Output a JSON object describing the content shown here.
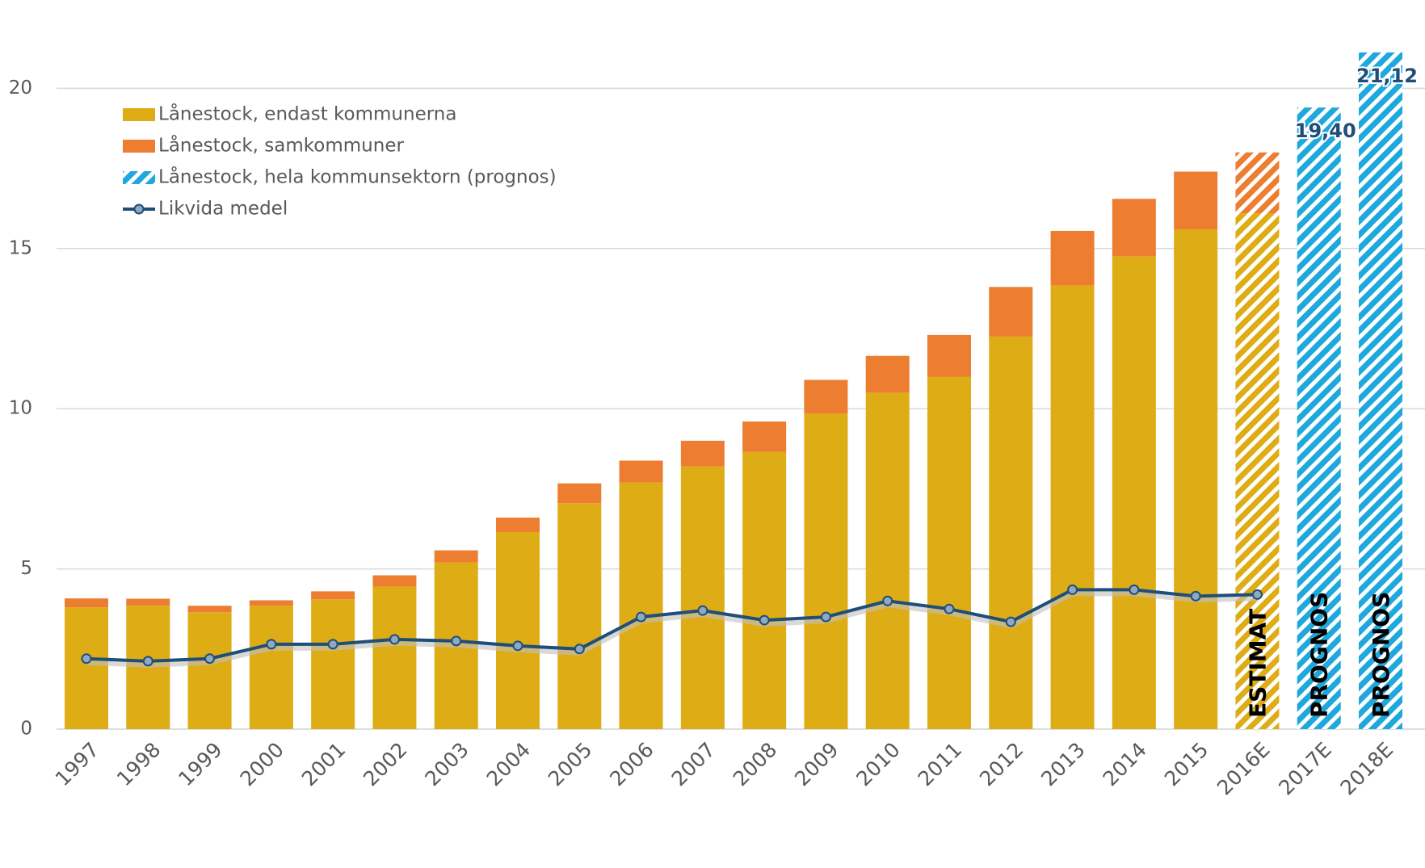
{
  "chart_data": {
    "type": "bar",
    "categories": [
      "1997",
      "1998",
      "1999",
      "2000",
      "2001",
      "2002",
      "2003",
      "2004",
      "2005",
      "2006",
      "2007",
      "2008",
      "2009",
      "2010",
      "2011",
      "2012",
      "2013",
      "2014",
      "2015",
      "2016E",
      "2017E",
      "2018E"
    ],
    "series": [
      {
        "name": "Lånestock, endast kommunerna",
        "color": "#deac14",
        "type": "bar",
        "values": [
          3.8,
          3.85,
          3.65,
          3.85,
          4.05,
          4.45,
          5.2,
          6.15,
          7.05,
          7.7,
          8.2,
          8.65,
          9.85,
          10.5,
          11.0,
          12.25,
          13.85,
          14.75,
          15.6,
          16.1,
          null,
          null
        ]
      },
      {
        "name": "Lånestock, samkommuner",
        "color": "#ed7d31",
        "type": "bar",
        "values": [
          0.28,
          0.22,
          0.2,
          0.17,
          0.25,
          0.35,
          0.38,
          0.45,
          0.62,
          0.68,
          0.8,
          0.95,
          1.05,
          1.15,
          1.3,
          1.55,
          1.7,
          1.8,
          1.8,
          1.9,
          null,
          null
        ]
      },
      {
        "name": "Lånestock, hela kommunsektorn (prognos)",
        "color": "#1ea8dc",
        "type": "bar",
        "hatched": true,
        "values": [
          null,
          null,
          null,
          null,
          null,
          null,
          null,
          null,
          null,
          null,
          null,
          null,
          null,
          null,
          null,
          null,
          null,
          null,
          null,
          null,
          19.4,
          21.12
        ],
        "value_labels": [
          null,
          null,
          null,
          null,
          null,
          null,
          null,
          null,
          null,
          null,
          null,
          null,
          null,
          null,
          null,
          null,
          null,
          null,
          null,
          null,
          "19,40",
          "21,12"
        ]
      },
      {
        "name": "Likvida medel",
        "color": "#1f4e79",
        "type": "line",
        "values": [
          2.2,
          2.12,
          2.2,
          2.65,
          2.65,
          2.8,
          2.75,
          2.6,
          2.5,
          3.5,
          3.7,
          3.4,
          3.5,
          4.0,
          3.75,
          3.35,
          4.35,
          4.35,
          4.15,
          4.2,
          null,
          null
        ]
      }
    ],
    "hatched_categories": [
      "2016E"
    ],
    "annotations": [
      {
        "category": "2016E",
        "text": "ESTIMAT"
      },
      {
        "category": "2017E",
        "text": "PROGNOS"
      },
      {
        "category": "2018E",
        "text": "PROGNOS"
      }
    ],
    "ylim": [
      0,
      22
    ],
    "yticks": [
      0,
      5,
      10,
      15,
      20
    ],
    "grid": true,
    "legend": "top-left"
  }
}
